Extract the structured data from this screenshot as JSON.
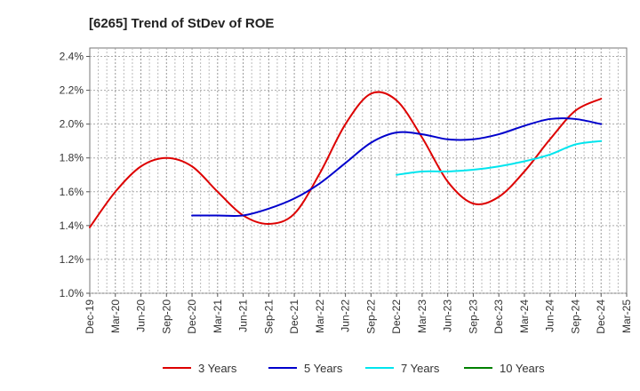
{
  "chart_data": {
    "type": "line",
    "title": "[6265]  Trend of StDev of ROE",
    "xlabel": "",
    "ylabel": "",
    "x_ticks": [
      "Dec-19",
      "Mar-20",
      "Jun-20",
      "Sep-20",
      "Dec-20",
      "Mar-21",
      "Jun-21",
      "Sep-21",
      "Dec-21",
      "Mar-22",
      "Jun-22",
      "Sep-22",
      "Dec-22",
      "Mar-23",
      "Jun-23",
      "Sep-23",
      "Dec-23",
      "Mar-24",
      "Jun-24",
      "Sep-24",
      "Dec-24",
      "Mar-25"
    ],
    "y_ticks": [
      "1.0%",
      "1.2%",
      "1.4%",
      "1.6%",
      "1.8%",
      "2.0%",
      "2.2%",
      "2.4%"
    ],
    "ylim": [
      1.0,
      2.45
    ],
    "grid": true,
    "legend_position": "bottom",
    "series": [
      {
        "name": "3 Years",
        "color": "#dd0000",
        "x": [
          "Dec-19",
          "Mar-20",
          "Jun-20",
          "Sep-20",
          "Dec-20",
          "Mar-21",
          "Jun-21",
          "Sep-21",
          "Dec-21",
          "Mar-22",
          "Jun-22",
          "Sep-22",
          "Dec-22",
          "Mar-23",
          "Jun-23",
          "Sep-23",
          "Dec-23",
          "Mar-24",
          "Jun-24",
          "Sep-24",
          "Dec-24"
        ],
        "values": [
          1.39,
          1.6,
          1.75,
          1.8,
          1.75,
          1.6,
          1.46,
          1.41,
          1.47,
          1.71,
          2.0,
          2.18,
          2.14,
          1.92,
          1.66,
          1.53,
          1.57,
          1.72,
          1.91,
          2.08,
          2.15
        ]
      },
      {
        "name": "5 Years",
        "color": "#0000cc",
        "x": [
          "Dec-20",
          "Mar-21",
          "Jun-21",
          "Sep-21",
          "Dec-21",
          "Mar-22",
          "Jun-22",
          "Sep-22",
          "Dec-22",
          "Mar-23",
          "Jun-23",
          "Sep-23",
          "Dec-23",
          "Mar-24",
          "Jun-24",
          "Sep-24",
          "Dec-24"
        ],
        "values": [
          1.46,
          1.46,
          1.46,
          1.5,
          1.56,
          1.65,
          1.77,
          1.89,
          1.95,
          1.94,
          1.91,
          1.91,
          1.94,
          1.99,
          2.03,
          2.03,
          2.0
        ]
      },
      {
        "name": "7 Years",
        "color": "#00e5ee",
        "x": [
          "Dec-22",
          "Mar-23",
          "Jun-23",
          "Sep-23",
          "Dec-23",
          "Mar-24",
          "Jun-24",
          "Sep-24",
          "Dec-24"
        ],
        "values": [
          1.7,
          1.72,
          1.72,
          1.73,
          1.75,
          1.78,
          1.82,
          1.88,
          1.9
        ]
      },
      {
        "name": "10 Years",
        "color": "#008000",
        "x": [],
        "values": []
      }
    ]
  }
}
